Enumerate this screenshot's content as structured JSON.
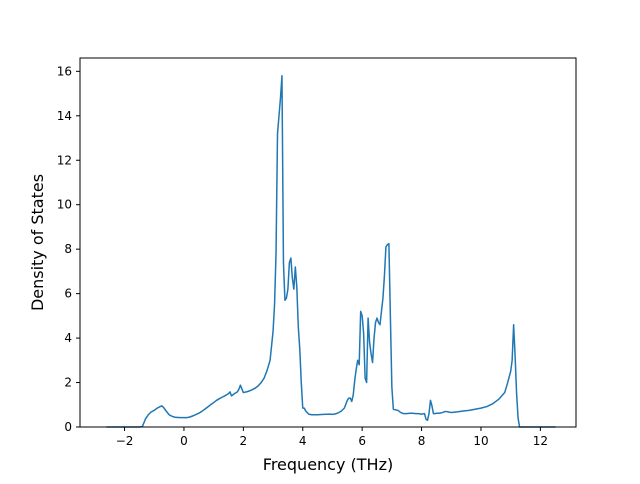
{
  "chart_data": {
    "type": "line",
    "title": "",
    "xlabel": "Frequency (THz)",
    "ylabel": "Density of States",
    "xlim": [
      -3.5,
      13.2
    ],
    "ylim": [
      0,
      16.6
    ],
    "xticks": [
      -2,
      0,
      2,
      4,
      6,
      8,
      10,
      12
    ],
    "xtick_labels": [
      "−2",
      "0",
      "2",
      "4",
      "6",
      "8",
      "10",
      "12"
    ],
    "yticks": [
      0,
      2,
      4,
      6,
      8,
      10,
      12,
      14,
      16
    ],
    "ytick_labels": [
      "0",
      "2",
      "4",
      "6",
      "8",
      "10",
      "12",
      "14",
      "16"
    ],
    "grid": false,
    "legend": false,
    "line_color": "#1f77b4",
    "series": [
      {
        "x": [
          -2.6,
          -2.0,
          -1.5,
          -1.4,
          -1.3,
          -1.2,
          -1.1,
          -1.0,
          -0.9,
          -0.8,
          -0.75,
          -0.7,
          -0.6,
          -0.5,
          -0.4,
          -0.3,
          -0.2,
          -0.1,
          0.0,
          0.1,
          0.2,
          0.3,
          0.4,
          0.5,
          0.6,
          0.7,
          0.8,
          0.9,
          1.0,
          1.1,
          1.2,
          1.3,
          1.4,
          1.5,
          1.55,
          1.6,
          1.7,
          1.8,
          1.85,
          1.9,
          2.0,
          2.1,
          2.2,
          2.3,
          2.4,
          2.5,
          2.6,
          2.7,
          2.8,
          2.9,
          3.0,
          3.05,
          3.1,
          3.15,
          3.2,
          3.25,
          3.3,
          3.35,
          3.4,
          3.45,
          3.5,
          3.55,
          3.6,
          3.65,
          3.7,
          3.75,
          3.8,
          3.85,
          3.9,
          3.95,
          4.0,
          4.05,
          4.1,
          4.2,
          4.3,
          4.5,
          4.7,
          4.9,
          5.0,
          5.1,
          5.2,
          5.3,
          5.4,
          5.5,
          5.55,
          5.6,
          5.65,
          5.7,
          5.75,
          5.8,
          5.85,
          5.9,
          5.95,
          6.0,
          6.05,
          6.1,
          6.15,
          6.2,
          6.25,
          6.3,
          6.35,
          6.4,
          6.45,
          6.5,
          6.55,
          6.6,
          6.65,
          6.7,
          6.75,
          6.8,
          6.85,
          6.9,
          6.95,
          7.0,
          7.05,
          7.1,
          7.2,
          7.3,
          7.4,
          7.5,
          7.6,
          7.7,
          7.8,
          7.9,
          8.0,
          8.1,
          8.15,
          8.2,
          8.25,
          8.3,
          8.35,
          8.4,
          8.45,
          8.5,
          8.6,
          8.7,
          8.8,
          8.9,
          9.0,
          9.2,
          9.4,
          9.6,
          9.8,
          10.0,
          10.2,
          10.4,
          10.5,
          10.6,
          10.7,
          10.8,
          10.9,
          11.0,
          11.05,
          11.1,
          11.15,
          11.2,
          11.25,
          11.3,
          11.4,
          11.6,
          12.0,
          12.5
        ],
        "values": [
          0,
          0,
          0,
          0.02,
          0.35,
          0.55,
          0.68,
          0.75,
          0.85,
          0.92,
          0.95,
          0.9,
          0.72,
          0.55,
          0.48,
          0.44,
          0.43,
          0.42,
          0.42,
          0.42,
          0.45,
          0.5,
          0.56,
          0.62,
          0.7,
          0.8,
          0.9,
          1.0,
          1.1,
          1.2,
          1.28,
          1.35,
          1.42,
          1.5,
          1.58,
          1.4,
          1.5,
          1.58,
          1.7,
          1.88,
          1.55,
          1.58,
          1.62,
          1.68,
          1.75,
          1.85,
          2.0,
          2.2,
          2.55,
          3.0,
          4.3,
          5.5,
          7.8,
          13.2,
          14.0,
          14.8,
          15.8,
          7.4,
          5.7,
          5.8,
          6.2,
          7.4,
          7.6,
          6.7,
          6.2,
          7.2,
          6.3,
          4.5,
          3.5,
          2.0,
          0.85,
          0.85,
          0.72,
          0.58,
          0.55,
          0.55,
          0.57,
          0.58,
          0.57,
          0.59,
          0.64,
          0.72,
          0.85,
          1.2,
          1.3,
          1.3,
          1.15,
          1.45,
          2.1,
          2.6,
          3.0,
          2.8,
          5.2,
          5.0,
          4.2,
          2.2,
          2.0,
          4.9,
          3.8,
          3.3,
          2.9,
          4.0,
          4.7,
          4.9,
          4.7,
          4.6,
          5.2,
          5.8,
          6.8,
          8.1,
          8.2,
          8.25,
          5.0,
          1.8,
          0.8,
          0.78,
          0.75,
          0.65,
          0.6,
          0.6,
          0.62,
          0.62,
          0.6,
          0.6,
          0.58,
          0.6,
          0.35,
          0.3,
          0.6,
          1.2,
          0.95,
          0.6,
          0.6,
          0.62,
          0.62,
          0.65,
          0.7,
          0.68,
          0.65,
          0.68,
          0.72,
          0.75,
          0.8,
          0.85,
          0.92,
          1.05,
          1.15,
          1.25,
          1.4,
          1.55,
          2.0,
          2.5,
          3.0,
          4.6,
          3.2,
          1.5,
          0.4,
          0,
          0,
          0,
          0,
          0
        ]
      }
    ]
  }
}
